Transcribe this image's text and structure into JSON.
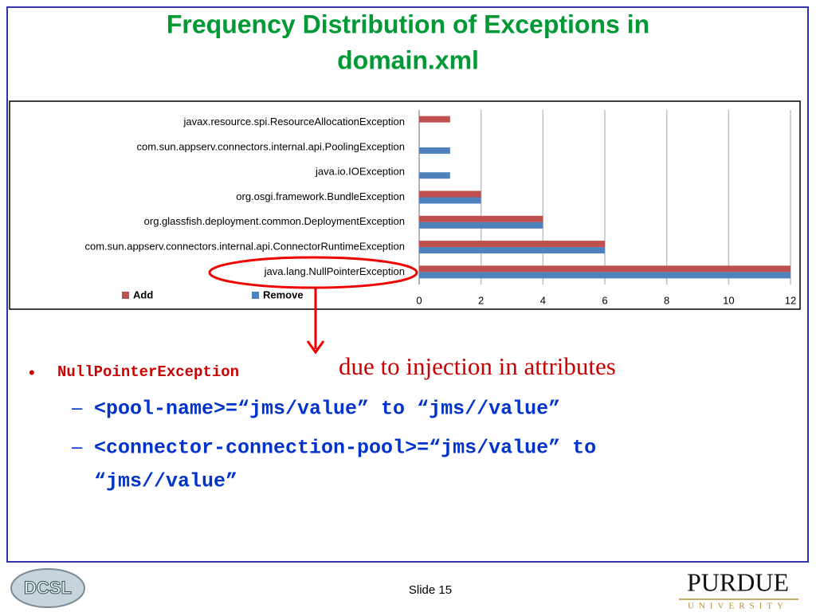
{
  "title": "Frequency Distribution of Exceptions in domain.xml",
  "chart_data": {
    "type": "hbar",
    "categories": [
      "javax.resource.spi.ResourceAllocationException",
      "com.sun.appserv.connectors.internal.api.PoolingException",
      "java.io.IOException",
      "org.osgi.framework.BundleException",
      "org.glassfish.deployment.common.DeploymentException",
      "com.sun.appserv.connectors.internal.api.ConnectorRuntimeException",
      "java.lang.NullPointerException"
    ],
    "series": [
      {
        "name": "Add",
        "color": "#c0504d",
        "values": [
          1,
          0,
          0,
          2,
          4,
          6,
          12
        ]
      },
      {
        "name": "Remove",
        "color": "#4f81bd",
        "values": [
          0,
          1,
          1,
          2,
          4,
          6,
          12
        ]
      }
    ],
    "xlim": [
      0,
      12
    ],
    "xticks": [
      0,
      2,
      4,
      6,
      8,
      10,
      12
    ],
    "grid": true,
    "legend": "bottom-left"
  },
  "bullets": [
    {
      "code": "NullPointerException",
      "text": "due to injection in attributes",
      "subs": [
        "<pool-name>=“jms/value” to “jms//value”",
        "<connector-connection-pool>=“jms/value” to",
        "“jms//value”"
      ]
    }
  ],
  "footer": {
    "slide": "Slide 15",
    "logo_left": "DCSL",
    "logo_right": "PURDUE",
    "logo_right_sub": "UNIVERSITY"
  }
}
